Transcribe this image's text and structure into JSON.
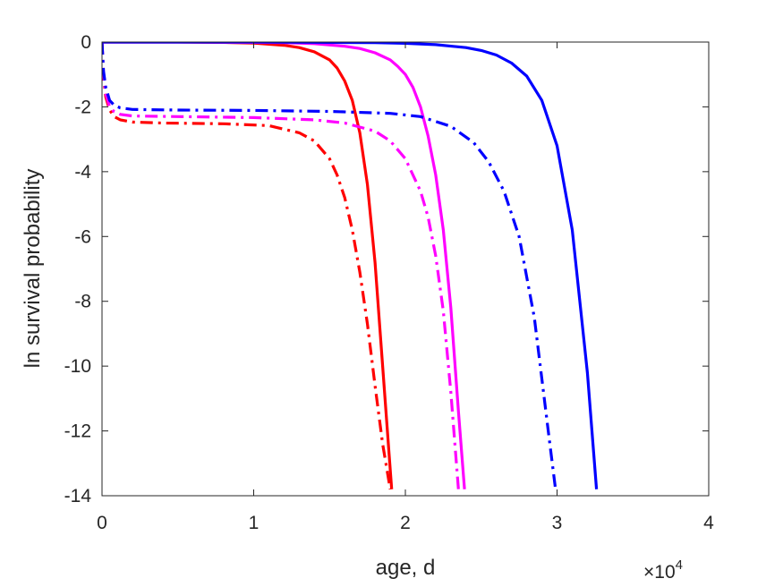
{
  "chart_data": {
    "type": "line",
    "title": "",
    "xlabel": "age, d",
    "ylabel": "ln survival probability",
    "xlim": [
      0,
      40000
    ],
    "ylim": [
      -14,
      0
    ],
    "x_exponent_label": "×10",
    "x_exponent_power": "4",
    "xticks": [
      0,
      10000,
      20000,
      30000,
      40000
    ],
    "xtick_labels": [
      "0",
      "1",
      "2",
      "3",
      "4"
    ],
    "yticks": [
      0,
      -2,
      -4,
      -6,
      -8,
      -10,
      -12,
      -14
    ],
    "ytick_labels": [
      "0",
      "-2",
      "-4",
      "-6",
      "-8",
      "-10",
      "-12",
      "-14"
    ],
    "grid": false,
    "legend": "none",
    "series": [
      {
        "color": "#ff0000",
        "style": "solid",
        "x": [
          0,
          2000,
          5000,
          8000,
          10000,
          12000,
          13000,
          14000,
          15000,
          15500,
          16000,
          16500,
          17000,
          17500,
          18000,
          18500,
          19100
        ],
        "y": [
          0,
          0,
          0,
          -0.01,
          -0.03,
          -0.1,
          -0.17,
          -0.3,
          -0.55,
          -0.8,
          -1.2,
          -1.8,
          -2.8,
          -4.4,
          -6.8,
          -10.0,
          -13.8
        ]
      },
      {
        "color": "#ff00ff",
        "style": "solid",
        "x": [
          0,
          3000,
          6000,
          10000,
          12000,
          14000,
          16000,
          17000,
          18000,
          19000,
          19500,
          20000,
          20500,
          21000,
          21500,
          22000,
          22500,
          23000,
          23500,
          23900
        ],
        "y": [
          0,
          0,
          0,
          -0.01,
          -0.02,
          -0.05,
          -0.13,
          -0.2,
          -0.33,
          -0.55,
          -0.75,
          -1.0,
          -1.4,
          -2.0,
          -2.9,
          -4.1,
          -5.8,
          -8.2,
          -11.4,
          -13.8
        ]
      },
      {
        "color": "#0000ff",
        "style": "solid",
        "x": [
          0,
          5000,
          10000,
          15000,
          18000,
          20000,
          22000,
          24000,
          25000,
          26000,
          27000,
          28000,
          29000,
          30000,
          31000,
          32000,
          32600
        ],
        "y": [
          0,
          0,
          0,
          -0.01,
          -0.02,
          -0.04,
          -0.08,
          -0.17,
          -0.26,
          -0.4,
          -0.65,
          -1.05,
          -1.8,
          -3.2,
          -5.8,
          -10.2,
          -13.8
        ]
      },
      {
        "color": "#ff0000",
        "style": "dashdot",
        "x": [
          0,
          100,
          250,
          500,
          800,
          1200,
          2000,
          4000,
          8000,
          11000,
          13000,
          14000,
          15000,
          15500,
          16000,
          16500,
          17000,
          17500,
          18000,
          18500,
          19000
        ],
        "y": [
          0,
          -1.1,
          -1.7,
          -2.1,
          -2.3,
          -2.4,
          -2.47,
          -2.5,
          -2.52,
          -2.58,
          -2.8,
          -3.05,
          -3.6,
          -4.1,
          -4.8,
          -5.8,
          -7.1,
          -8.7,
          -10.6,
          -12.4,
          -13.8
        ]
      },
      {
        "color": "#ff00ff",
        "style": "dashdot",
        "x": [
          0,
          100,
          250,
          500,
          800,
          1200,
          2000,
          5000,
          10000,
          14000,
          16000,
          18000,
          19000,
          20000,
          21000,
          21500,
          22000,
          22500,
          23000,
          23500
        ],
        "y": [
          0,
          -1.0,
          -1.6,
          -2.0,
          -2.15,
          -2.23,
          -2.28,
          -2.3,
          -2.33,
          -2.4,
          -2.5,
          -2.75,
          -3.05,
          -3.6,
          -4.6,
          -5.4,
          -6.6,
          -8.3,
          -10.8,
          -13.8
        ]
      },
      {
        "color": "#0000ff",
        "style": "dashdot",
        "x": [
          0,
          100,
          250,
          500,
          800,
          1200,
          2000,
          5000,
          10000,
          15000,
          19000,
          21000,
          23000,
          24500,
          25500,
          26500,
          27500,
          28500,
          29500,
          29900
        ],
        "y": [
          0,
          -0.9,
          -1.4,
          -1.8,
          -1.95,
          -2.03,
          -2.08,
          -2.1,
          -2.11,
          -2.14,
          -2.2,
          -2.3,
          -2.6,
          -3.1,
          -3.7,
          -4.6,
          -6.0,
          -8.5,
          -12.3,
          -13.8
        ]
      }
    ]
  }
}
